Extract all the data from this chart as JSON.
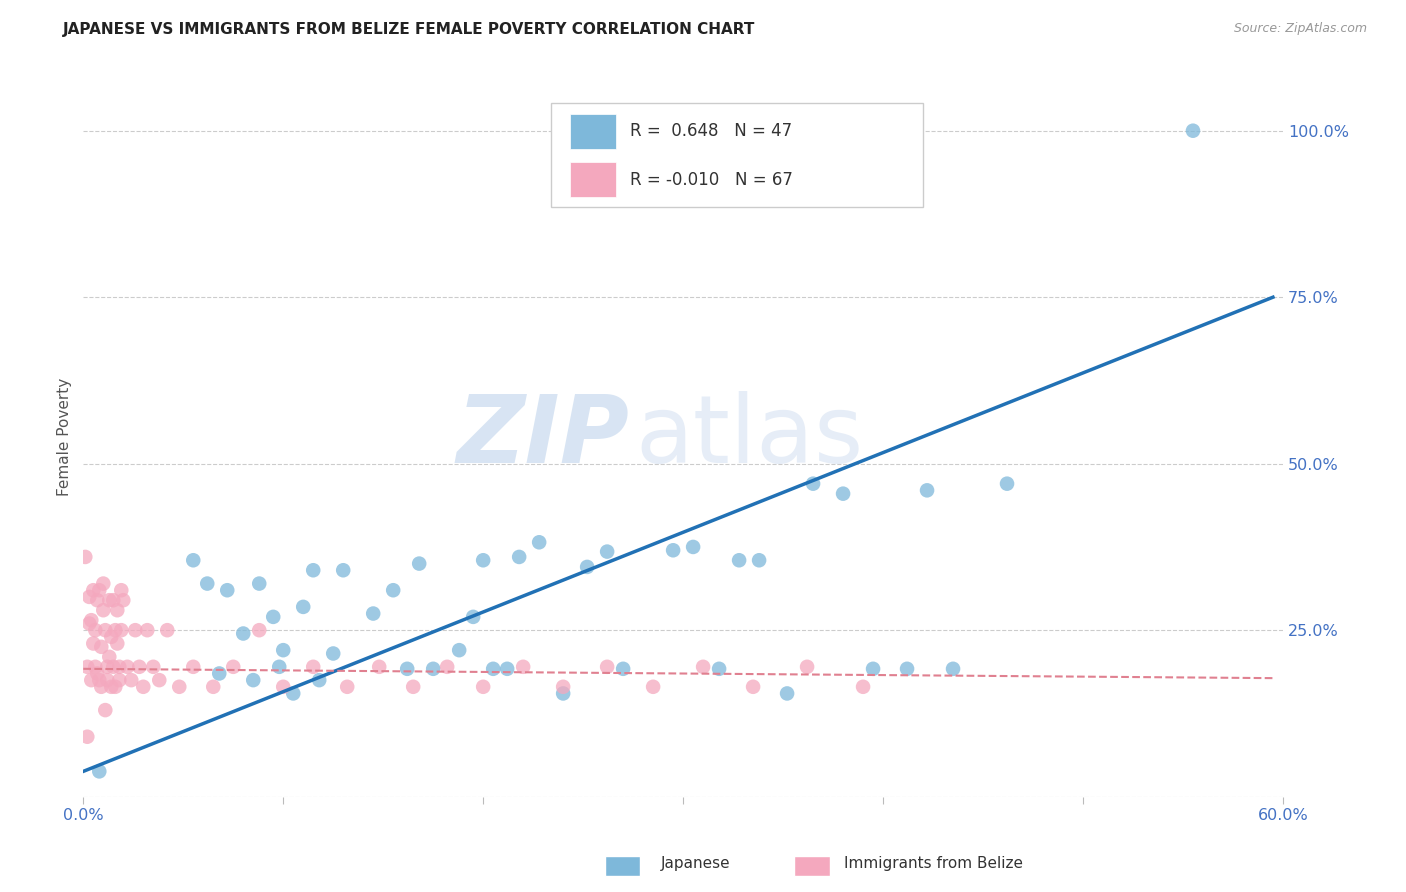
{
  "title": "JAPANESE VS IMMIGRANTS FROM BELIZE FEMALE POVERTY CORRELATION CHART",
  "source": "Source: ZipAtlas.com",
  "xlabel_japanese": "Japanese",
  "xlabel_belize": "Immigrants from Belize",
  "ylabel": "Female Poverty",
  "xlim": [
    0.0,
    0.6
  ],
  "ylim": [
    0.0,
    1.08
  ],
  "xticks": [
    0.0,
    0.1,
    0.2,
    0.3,
    0.4,
    0.5,
    0.6
  ],
  "xticklabels": [
    "0.0%",
    "",
    "",
    "",
    "",
    "",
    "60.0%"
  ],
  "ytick_positions": [
    0.0,
    0.25,
    0.5,
    0.75,
    1.0
  ],
  "yticklabels": [
    "",
    "25.0%",
    "50.0%",
    "75.0%",
    "100.0%"
  ],
  "R_japanese": 0.648,
  "N_japanese": 47,
  "R_belize": -0.01,
  "N_belize": 67,
  "color_japanese": "#7EB8DA",
  "color_japanese_dark": "#2171B5",
  "color_belize": "#F4A8BE",
  "color_belize_line": "#E08090",
  "watermark_zip": "ZIP",
  "watermark_atlas": "atlas",
  "japanese_x": [
    0.008,
    0.055,
    0.062,
    0.068,
    0.072,
    0.08,
    0.085,
    0.088,
    0.095,
    0.098,
    0.1,
    0.105,
    0.11,
    0.115,
    0.118,
    0.125,
    0.13,
    0.145,
    0.155,
    0.162,
    0.168,
    0.175,
    0.188,
    0.195,
    0.2,
    0.205,
    0.212,
    0.218,
    0.228,
    0.24,
    0.252,
    0.262,
    0.27,
    0.295,
    0.305,
    0.318,
    0.328,
    0.338,
    0.352,
    0.365,
    0.38,
    0.395,
    0.412,
    0.422,
    0.435,
    0.462,
    0.555
  ],
  "japanese_y": [
    0.038,
    0.355,
    0.32,
    0.185,
    0.31,
    0.245,
    0.175,
    0.32,
    0.27,
    0.195,
    0.22,
    0.155,
    0.285,
    0.34,
    0.175,
    0.215,
    0.34,
    0.275,
    0.31,
    0.192,
    0.35,
    0.192,
    0.22,
    0.27,
    0.355,
    0.192,
    0.192,
    0.36,
    0.382,
    0.155,
    0.345,
    0.368,
    0.192,
    0.37,
    0.375,
    0.192,
    0.355,
    0.355,
    0.155,
    0.47,
    0.455,
    0.192,
    0.192,
    0.46,
    0.192,
    0.47,
    1.0
  ],
  "belize_x": [
    0.001,
    0.002,
    0.002,
    0.003,
    0.003,
    0.004,
    0.004,
    0.005,
    0.005,
    0.006,
    0.006,
    0.007,
    0.007,
    0.008,
    0.008,
    0.009,
    0.009,
    0.01,
    0.01,
    0.011,
    0.011,
    0.012,
    0.012,
    0.013,
    0.013,
    0.014,
    0.014,
    0.015,
    0.015,
    0.016,
    0.016,
    0.017,
    0.017,
    0.018,
    0.018,
    0.019,
    0.019,
    0.02,
    0.022,
    0.024,
    0.026,
    0.028,
    0.03,
    0.032,
    0.035,
    0.038,
    0.042,
    0.048,
    0.055,
    0.065,
    0.075,
    0.088,
    0.1,
    0.115,
    0.132,
    0.148,
    0.165,
    0.182,
    0.2,
    0.22,
    0.24,
    0.262,
    0.285,
    0.31,
    0.335,
    0.362,
    0.39
  ],
  "belize_y": [
    0.36,
    0.09,
    0.195,
    0.26,
    0.3,
    0.265,
    0.175,
    0.23,
    0.31,
    0.25,
    0.195,
    0.185,
    0.295,
    0.175,
    0.31,
    0.225,
    0.165,
    0.28,
    0.32,
    0.13,
    0.25,
    0.195,
    0.175,
    0.21,
    0.295,
    0.165,
    0.24,
    0.195,
    0.295,
    0.25,
    0.165,
    0.23,
    0.28,
    0.195,
    0.175,
    0.25,
    0.31,
    0.295,
    0.195,
    0.175,
    0.25,
    0.195,
    0.165,
    0.25,
    0.195,
    0.175,
    0.25,
    0.165,
    0.195,
    0.165,
    0.195,
    0.25,
    0.165,
    0.195,
    0.165,
    0.195,
    0.165,
    0.195,
    0.165,
    0.195,
    0.165,
    0.195,
    0.165,
    0.195,
    0.165,
    0.195,
    0.165
  ],
  "jap_line_x": [
    0.0,
    0.595
  ],
  "jap_line_y": [
    0.038,
    0.75
  ],
  "bel_line_x": [
    0.0,
    0.595
  ],
  "bel_line_y": [
    0.192,
    0.178
  ]
}
